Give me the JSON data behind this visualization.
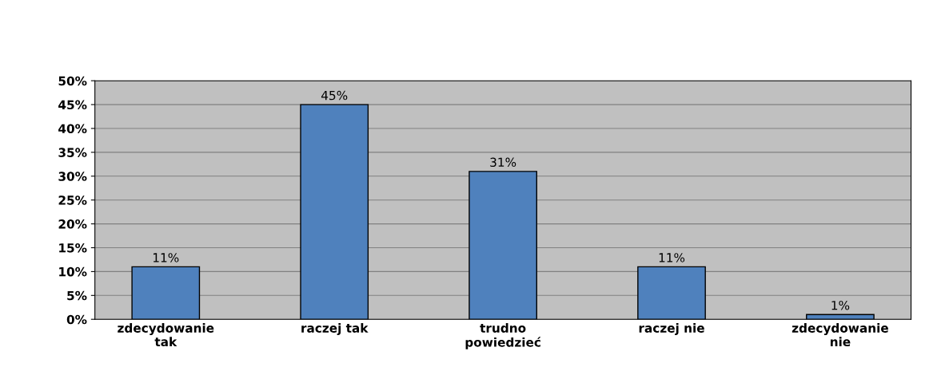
{
  "chart_data": {
    "type": "bar",
    "categories": [
      "zdecydowanie\ntak",
      "raczej tak",
      "trudno\npowiedzieć",
      "raczej nie",
      "zdecydowanie\nnie"
    ],
    "values": [
      11,
      45,
      31,
      11,
      1
    ],
    "value_labels": [
      "11%",
      "45%",
      "31%",
      "11%",
      "1%"
    ],
    "color": "#4f81bd",
    "ylim": [
      0,
      50
    ],
    "yticks": [
      {
        "value": 0,
        "label": "0%"
      },
      {
        "value": 5,
        "label": "5%"
      },
      {
        "value": 10,
        "label": "10%"
      },
      {
        "value": 15,
        "label": "15%"
      },
      {
        "value": 20,
        "label": "20%"
      },
      {
        "value": 25,
        "label": "25%"
      },
      {
        "value": 30,
        "label": "30%"
      },
      {
        "value": 35,
        "label": "35%"
      },
      {
        "value": 40,
        "label": "40%"
      },
      {
        "value": 45,
        "label": "45%"
      },
      {
        "value": 50,
        "label": "50%"
      }
    ],
    "grid": "y",
    "legend": false
  }
}
